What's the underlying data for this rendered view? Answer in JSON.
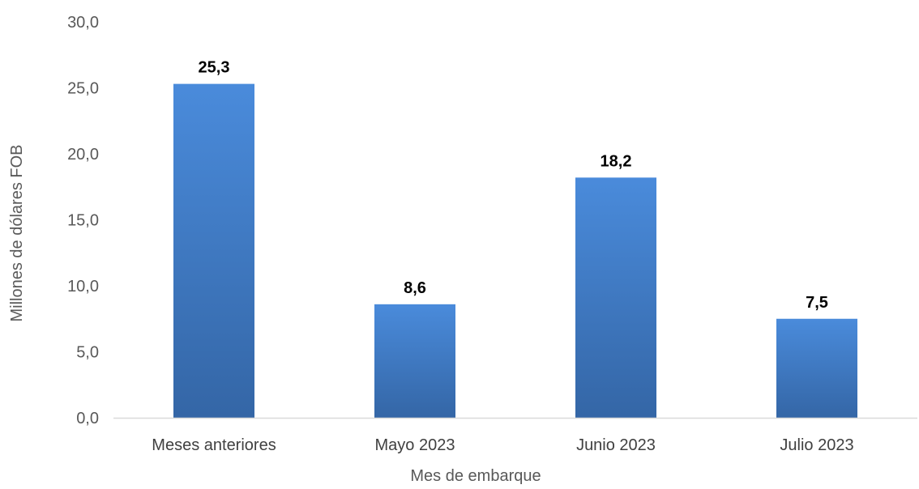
{
  "chart_data": {
    "type": "bar",
    "categories": [
      "Meses anteriores",
      "Mayo 2023",
      "Junio 2023",
      "Julio 2023"
    ],
    "values": [
      25.3,
      8.6,
      18.2,
      7.5
    ],
    "value_labels": [
      "25,3",
      "8,6",
      "18,2",
      "7,5"
    ],
    "ylabel": "Millones de dólares FOB",
    "xlabel": "Mes de embarque",
    "ylim": [
      0,
      30
    ],
    "yticks": [
      0,
      5,
      10,
      15,
      20,
      25,
      30
    ],
    "ytick_labels": [
      "0,0",
      "5,0",
      "10,0",
      "15,0",
      "20,0",
      "25,0",
      "30,0"
    ],
    "grid": false,
    "legend": "none",
    "colors": {
      "bar_top": "#4A8BDB",
      "bar_bottom": "#3466A6",
      "axis": "#D9D9D9"
    }
  }
}
